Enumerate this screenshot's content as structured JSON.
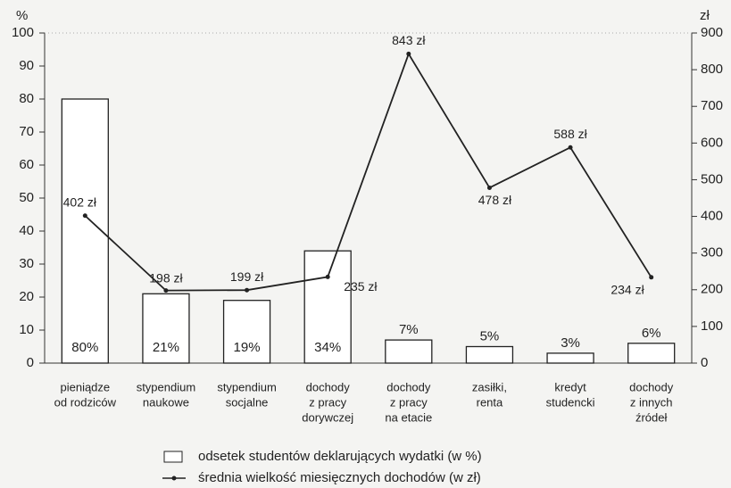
{
  "chart_data": {
    "type": "bar_line",
    "y_label": "%",
    "y2_label": "zł",
    "categories": [
      [
        "pieniądze",
        "od rodziców"
      ],
      [
        "stypendium",
        "naukowe"
      ],
      [
        "stypendium",
        "socjalne"
      ],
      [
        "dochody",
        "z pracy",
        "dorywczej"
      ],
      [
        "dochody",
        "z pracy",
        "na etacie"
      ],
      [
        "zasiłki,",
        "renta"
      ],
      [
        "kredyt",
        "studencki"
      ],
      [
        "dochody",
        "z innych",
        "źródeł"
      ]
    ],
    "series": [
      {
        "name": "odsetek studentów deklarujących wydatki (w %)",
        "type": "bar",
        "color": "#ffffff",
        "values": [
          80,
          21,
          19,
          34,
          7,
          5,
          3,
          6
        ],
        "value_labels": [
          "80%",
          "21%",
          "19%",
          "34%",
          "7%",
          "5%",
          "3%",
          "6%"
        ]
      },
      {
        "name": "średnia wielkość miesięcznych dochodów (w zł)",
        "type": "line",
        "axis": "y2",
        "color": "#222222",
        "values": [
          402,
          198,
          199,
          235,
          843,
          478,
          588,
          234
        ],
        "value_labels": [
          "402 zł",
          "198 zł",
          "199 zł",
          "235 zł",
          "843 zł",
          "478 zł",
          "588 zł",
          "234 zł"
        ]
      }
    ],
    "ylim": [
      0,
      100
    ],
    "yticks": [
      0,
      10,
      20,
      30,
      40,
      50,
      60,
      70,
      80,
      90,
      100
    ],
    "y2lim": [
      0,
      900
    ],
    "y2ticks": [
      0,
      100,
      200,
      300,
      400,
      500,
      600,
      700,
      800,
      900
    ]
  }
}
